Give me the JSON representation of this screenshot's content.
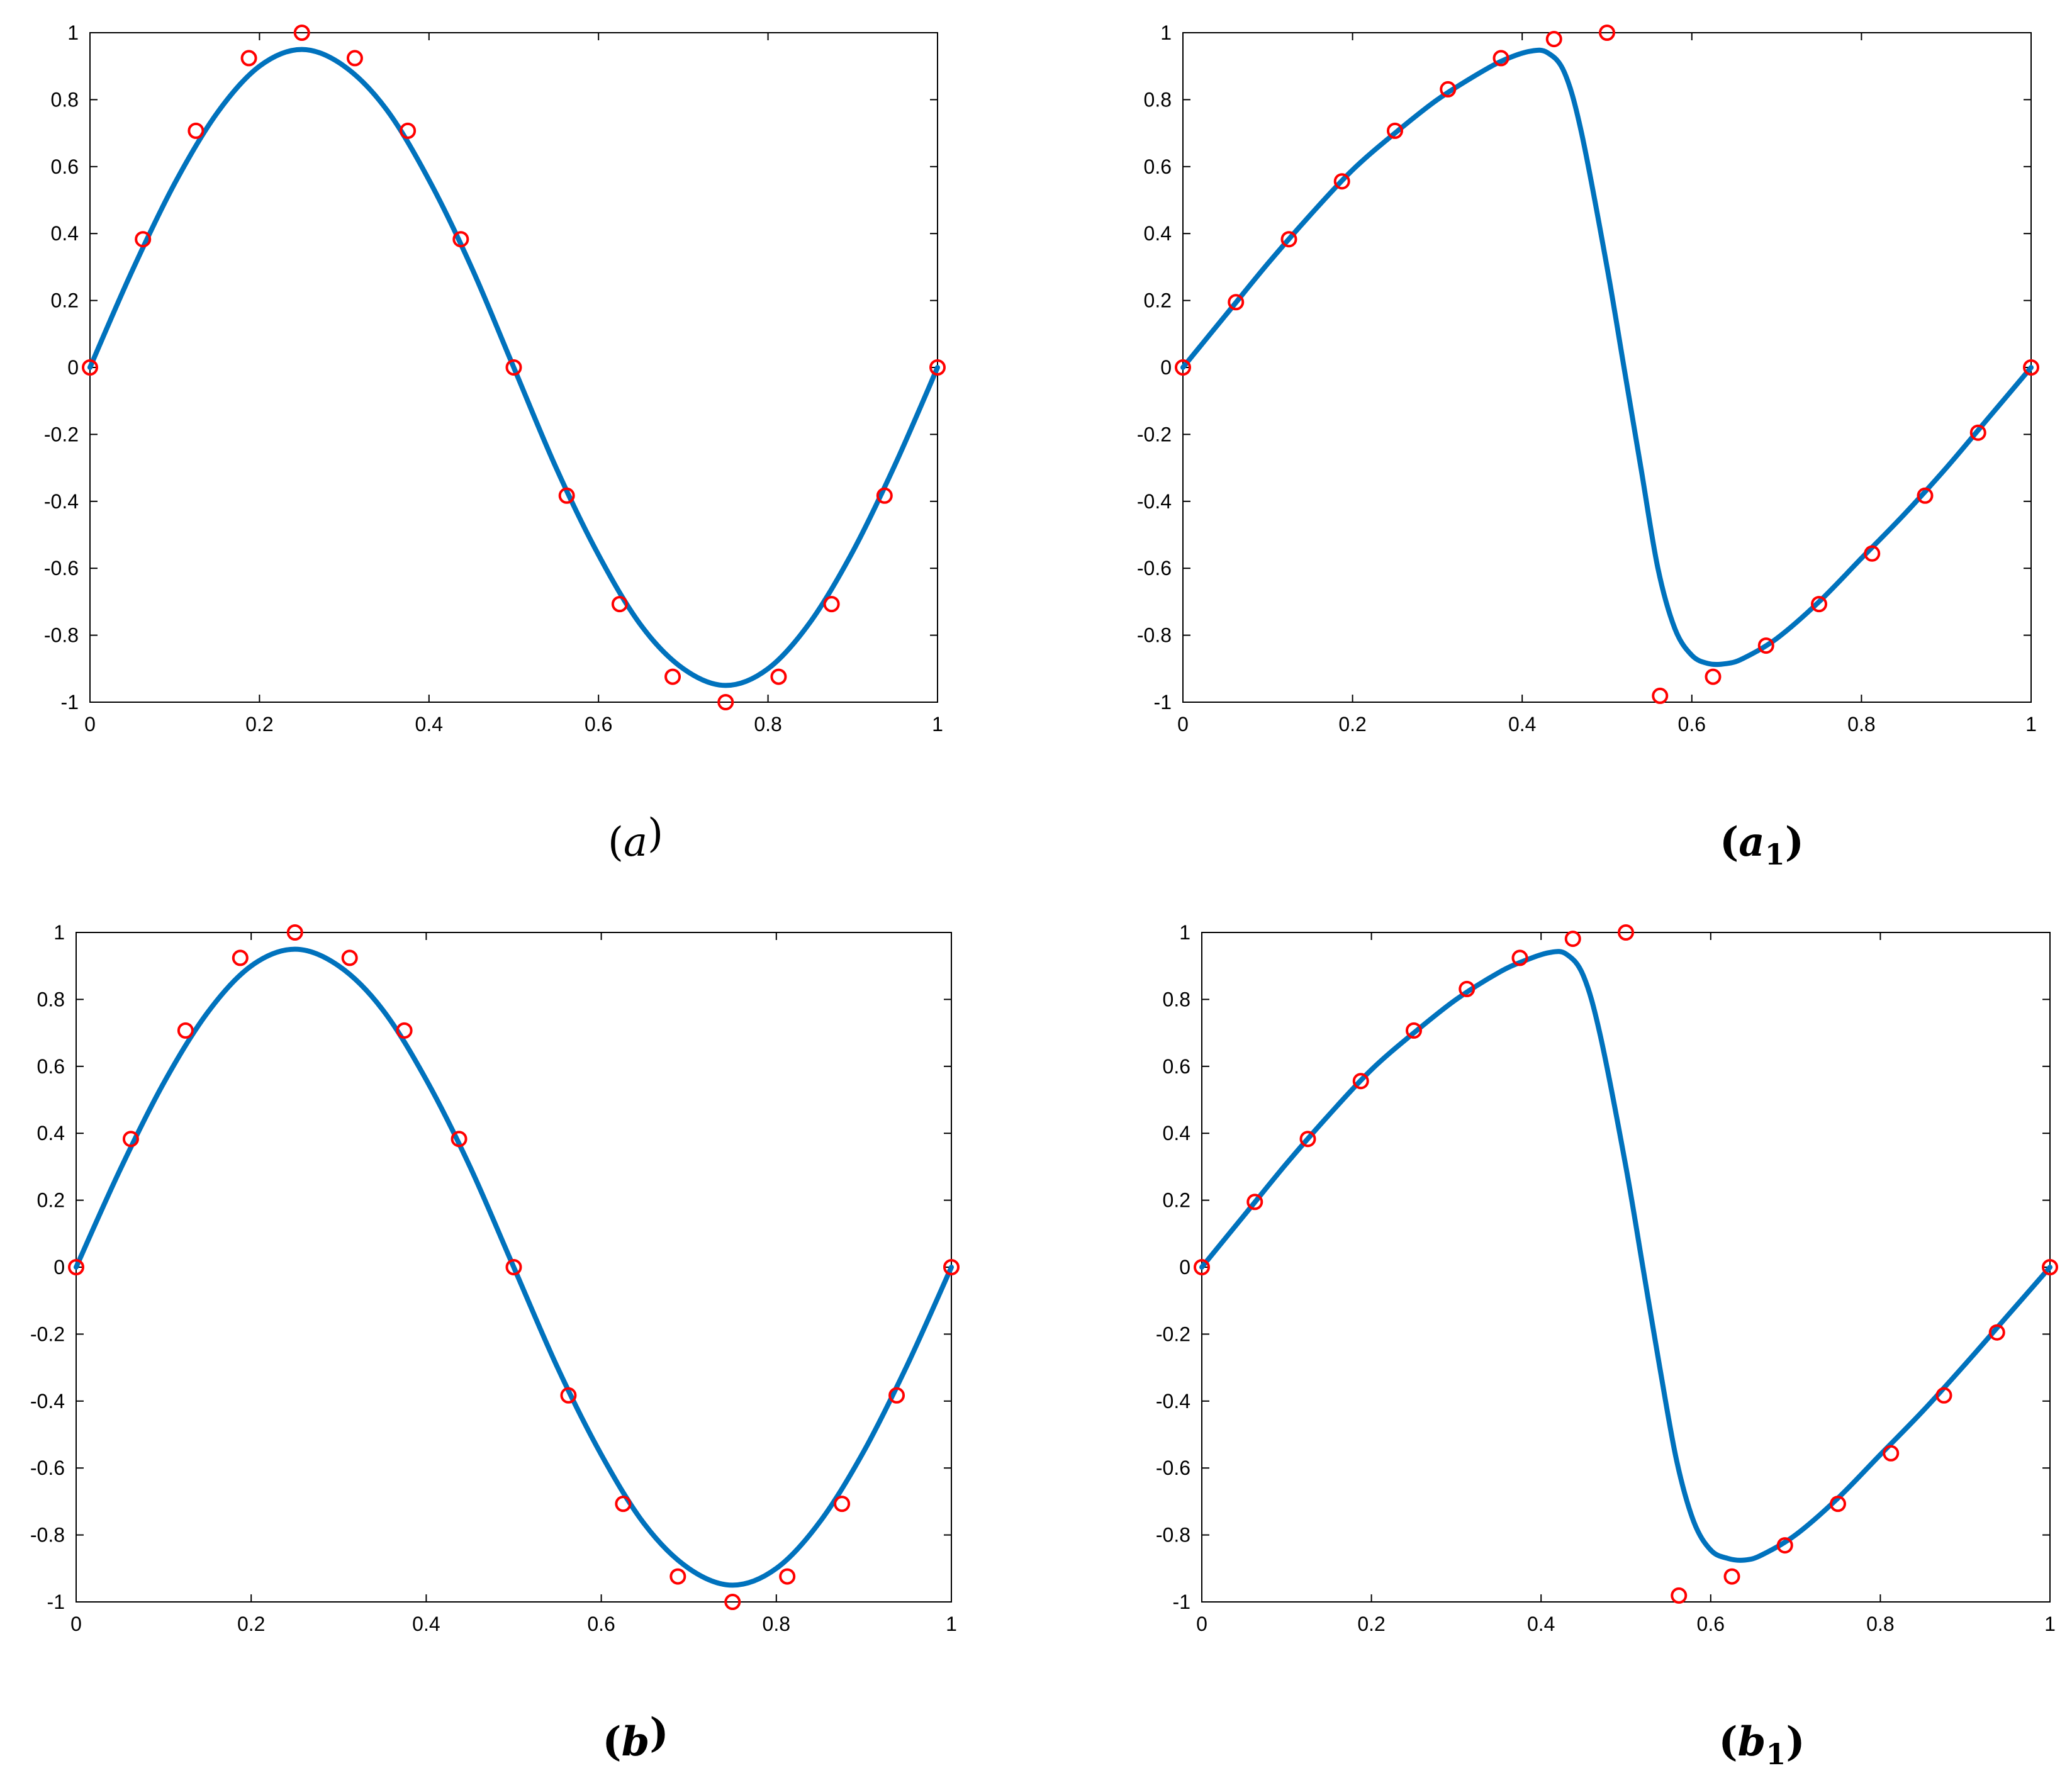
{
  "figure": {
    "panels": [
      {
        "caption_letter": "a",
        "caption_sub": "",
        "bold": false
      },
      {
        "caption_letter": "a",
        "caption_sub": "1",
        "bold": true
      },
      {
        "caption_letter": "b",
        "caption_sub": "",
        "bold": true
      },
      {
        "caption_letter": "b",
        "caption_sub": "1",
        "bold": true
      }
    ]
  },
  "colors": {
    "curve": "#0072BD",
    "markers": "#FF0000",
    "axes": "#000000"
  },
  "chart_data": [
    {
      "type": "line",
      "title": "",
      "xlabel": "",
      "ylabel": "",
      "xlim": [
        0,
        1
      ],
      "ylim": [
        -1,
        1
      ],
      "xticks": [
        0,
        0.2,
        0.4,
        0.6,
        0.8,
        1
      ],
      "xtick_labels": [
        "0",
        "0.2",
        "0.4",
        "0.6",
        "0.8",
        "1"
      ],
      "yticks": [
        -1,
        -0.8,
        -0.6,
        -0.4,
        -0.2,
        0,
        0.2,
        0.4,
        0.6,
        0.8,
        1
      ],
      "ytick_labels": [
        "-1",
        "-0.8",
        "-0.6",
        "-0.4",
        "-0.2",
        "0",
        "0.2",
        "0.4",
        "0.6",
        "0.8",
        "1"
      ],
      "grid": false,
      "series": [
        {
          "style": "line",
          "x": [
            0,
            0.05,
            0.1,
            0.15,
            0.2,
            0.25,
            0.3,
            0.35,
            0.4,
            0.45,
            0.5,
            0.55,
            0.6,
            0.65,
            0.7,
            0.75,
            0.8,
            0.85,
            0.9,
            0.95,
            1
          ],
          "y": [
            0,
            0.29,
            0.55,
            0.76,
            0.9,
            0.95,
            0.9,
            0.77,
            0.56,
            0.3,
            0,
            -0.3,
            -0.56,
            -0.77,
            -0.9,
            -0.95,
            -0.9,
            -0.76,
            -0.55,
            -0.29,
            0
          ]
        },
        {
          "style": "markers",
          "x": [
            0,
            0.0625,
            0.125,
            0.1875,
            0.25,
            0.3125,
            0.375,
            0.4375,
            0.5,
            0.5625,
            0.625,
            0.6875,
            0.75,
            0.8125,
            0.875,
            0.9375,
            1
          ],
          "y": [
            0,
            0.383,
            0.707,
            0.924,
            1,
            0.924,
            0.707,
            0.383,
            0,
            -0.383,
            -0.707,
            -0.924,
            -1,
            -0.924,
            -0.707,
            -0.383,
            0
          ]
        }
      ]
    },
    {
      "type": "line",
      "title": "",
      "xlabel": "",
      "ylabel": "",
      "xlim": [
        0,
        1
      ],
      "ylim": [
        -1,
        1
      ],
      "xticks": [
        0,
        0.2,
        0.4,
        0.6,
        0.8,
        1
      ],
      "xtick_labels": [
        "0",
        "0.2",
        "0.4",
        "0.6",
        "0.8",
        "1"
      ],
      "yticks": [
        -1,
        -0.8,
        -0.6,
        -0.4,
        -0.2,
        0,
        0.2,
        0.4,
        0.6,
        0.8,
        1
      ],
      "ytick_labels": [
        "-1",
        "-0.8",
        "-0.6",
        "-0.4",
        "-0.2",
        "0",
        "0.2",
        "0.4",
        "0.6",
        "0.8",
        "1"
      ],
      "grid": false,
      "series": [
        {
          "style": "line",
          "x": [
            0,
            0.05,
            0.1,
            0.15,
            0.2,
            0.25,
            0.3,
            0.35,
            0.38,
            0.41,
            0.43,
            0.45,
            0.47,
            0.5,
            0.52,
            0.54,
            0.56,
            0.58,
            0.6,
            0.62,
            0.64,
            0.66,
            0.7,
            0.75,
            0.8,
            0.85,
            0.9,
            0.95,
            1
          ],
          "y": [
            0,
            0.155,
            0.31,
            0.455,
            0.59,
            0.7,
            0.8,
            0.88,
            0.92,
            0.945,
            0.94,
            0.88,
            0.7,
            0.3,
            0,
            -0.3,
            -0.6,
            -0.78,
            -0.86,
            -0.885,
            -0.885,
            -0.87,
            -0.81,
            -0.7,
            -0.57,
            -0.44,
            -0.3,
            -0.15,
            0
          ]
        },
        {
          "style": "markers",
          "x": [
            0,
            0.0625,
            0.125,
            0.1875,
            0.25,
            0.3125,
            0.375,
            0.4375,
            0.5,
            0.5625,
            0.625,
            0.6875,
            0.75,
            0.8125,
            0.875,
            0.9375,
            1
          ],
          "y": [
            0,
            0.195,
            0.383,
            0.556,
            0.707,
            0.831,
            0.924,
            0.981,
            1,
            -0.981,
            -0.924,
            -0.831,
            -0.707,
            -0.556,
            -0.383,
            -0.195,
            0
          ]
        }
      ]
    },
    {
      "type": "line",
      "title": "",
      "xlabel": "",
      "ylabel": "",
      "xlim": [
        0,
        1
      ],
      "ylim": [
        -1,
        1
      ],
      "xticks": [
        0,
        0.2,
        0.4,
        0.6,
        0.8,
        1
      ],
      "xtick_labels": [
        "0",
        "0.2",
        "0.4",
        "0.6",
        "0.8",
        "1"
      ],
      "yticks": [
        -1,
        -0.8,
        -0.6,
        -0.4,
        -0.2,
        0,
        0.2,
        0.4,
        0.6,
        0.8,
        1
      ],
      "ytick_labels": [
        "-1",
        "-0.8",
        "-0.6",
        "-0.4",
        "-0.2",
        "0",
        "0.2",
        "0.4",
        "0.6",
        "0.8",
        "1"
      ],
      "grid": false,
      "series": [
        {
          "style": "line",
          "x": [
            0,
            0.05,
            0.1,
            0.15,
            0.2,
            0.25,
            0.3,
            0.35,
            0.4,
            0.45,
            0.5,
            0.55,
            0.6,
            0.65,
            0.7,
            0.75,
            0.8,
            0.85,
            0.9,
            0.95,
            1
          ],
          "y": [
            0,
            0.29,
            0.55,
            0.76,
            0.9,
            0.95,
            0.9,
            0.77,
            0.56,
            0.3,
            0,
            -0.3,
            -0.56,
            -0.77,
            -0.9,
            -0.95,
            -0.9,
            -0.76,
            -0.55,
            -0.29,
            0
          ]
        },
        {
          "style": "markers",
          "x": [
            0,
            0.0625,
            0.125,
            0.1875,
            0.25,
            0.3125,
            0.375,
            0.4375,
            0.5,
            0.5625,
            0.625,
            0.6875,
            0.75,
            0.8125,
            0.875,
            0.9375,
            1
          ],
          "y": [
            0,
            0.383,
            0.707,
            0.924,
            1,
            0.924,
            0.707,
            0.383,
            0,
            -0.383,
            -0.707,
            -0.924,
            -1,
            -0.924,
            -0.707,
            -0.383,
            0
          ]
        }
      ]
    },
    {
      "type": "line",
      "title": "",
      "xlabel": "",
      "ylabel": "",
      "xlim": [
        0,
        1
      ],
      "ylim": [
        -1,
        1
      ],
      "xticks": [
        0,
        0.2,
        0.4,
        0.6,
        0.8,
        1
      ],
      "xtick_labels": [
        "0",
        "0.2",
        "0.4",
        "0.6",
        "0.8",
        "1"
      ],
      "yticks": [
        -1,
        -0.8,
        -0.6,
        -0.4,
        -0.2,
        0,
        0.2,
        0.4,
        0.6,
        0.8,
        1
      ],
      "ytick_labels": [
        "-1",
        "-0.8",
        "-0.6",
        "-0.4",
        "-0.2",
        "0",
        "0.2",
        "0.4",
        "0.6",
        "0.8",
        "1"
      ],
      "grid": false,
      "series": [
        {
          "style": "line",
          "x": [
            0,
            0.05,
            0.1,
            0.15,
            0.2,
            0.25,
            0.3,
            0.35,
            0.38,
            0.41,
            0.43,
            0.45,
            0.47,
            0.5,
            0.52,
            0.54,
            0.56,
            0.58,
            0.6,
            0.62,
            0.64,
            0.66,
            0.7,
            0.75,
            0.8,
            0.85,
            0.9,
            0.95,
            1
          ],
          "y": [
            0,
            0.155,
            0.31,
            0.455,
            0.59,
            0.7,
            0.8,
            0.88,
            0.915,
            0.94,
            0.935,
            0.87,
            0.69,
            0.3,
            0,
            -0.3,
            -0.58,
            -0.76,
            -0.845,
            -0.87,
            -0.875,
            -0.86,
            -0.8,
            -0.69,
            -0.56,
            -0.43,
            -0.29,
            -0.145,
            0
          ]
        },
        {
          "style": "markers",
          "x": [
            0,
            0.0625,
            0.125,
            0.1875,
            0.25,
            0.3125,
            0.375,
            0.4375,
            0.5,
            0.5625,
            0.625,
            0.6875,
            0.75,
            0.8125,
            0.875,
            0.9375,
            1
          ],
          "y": [
            0,
            0.195,
            0.383,
            0.556,
            0.707,
            0.831,
            0.924,
            0.981,
            1,
            -0.981,
            -0.924,
            -0.831,
            -0.707,
            -0.556,
            -0.383,
            -0.195,
            0
          ]
        }
      ]
    }
  ]
}
